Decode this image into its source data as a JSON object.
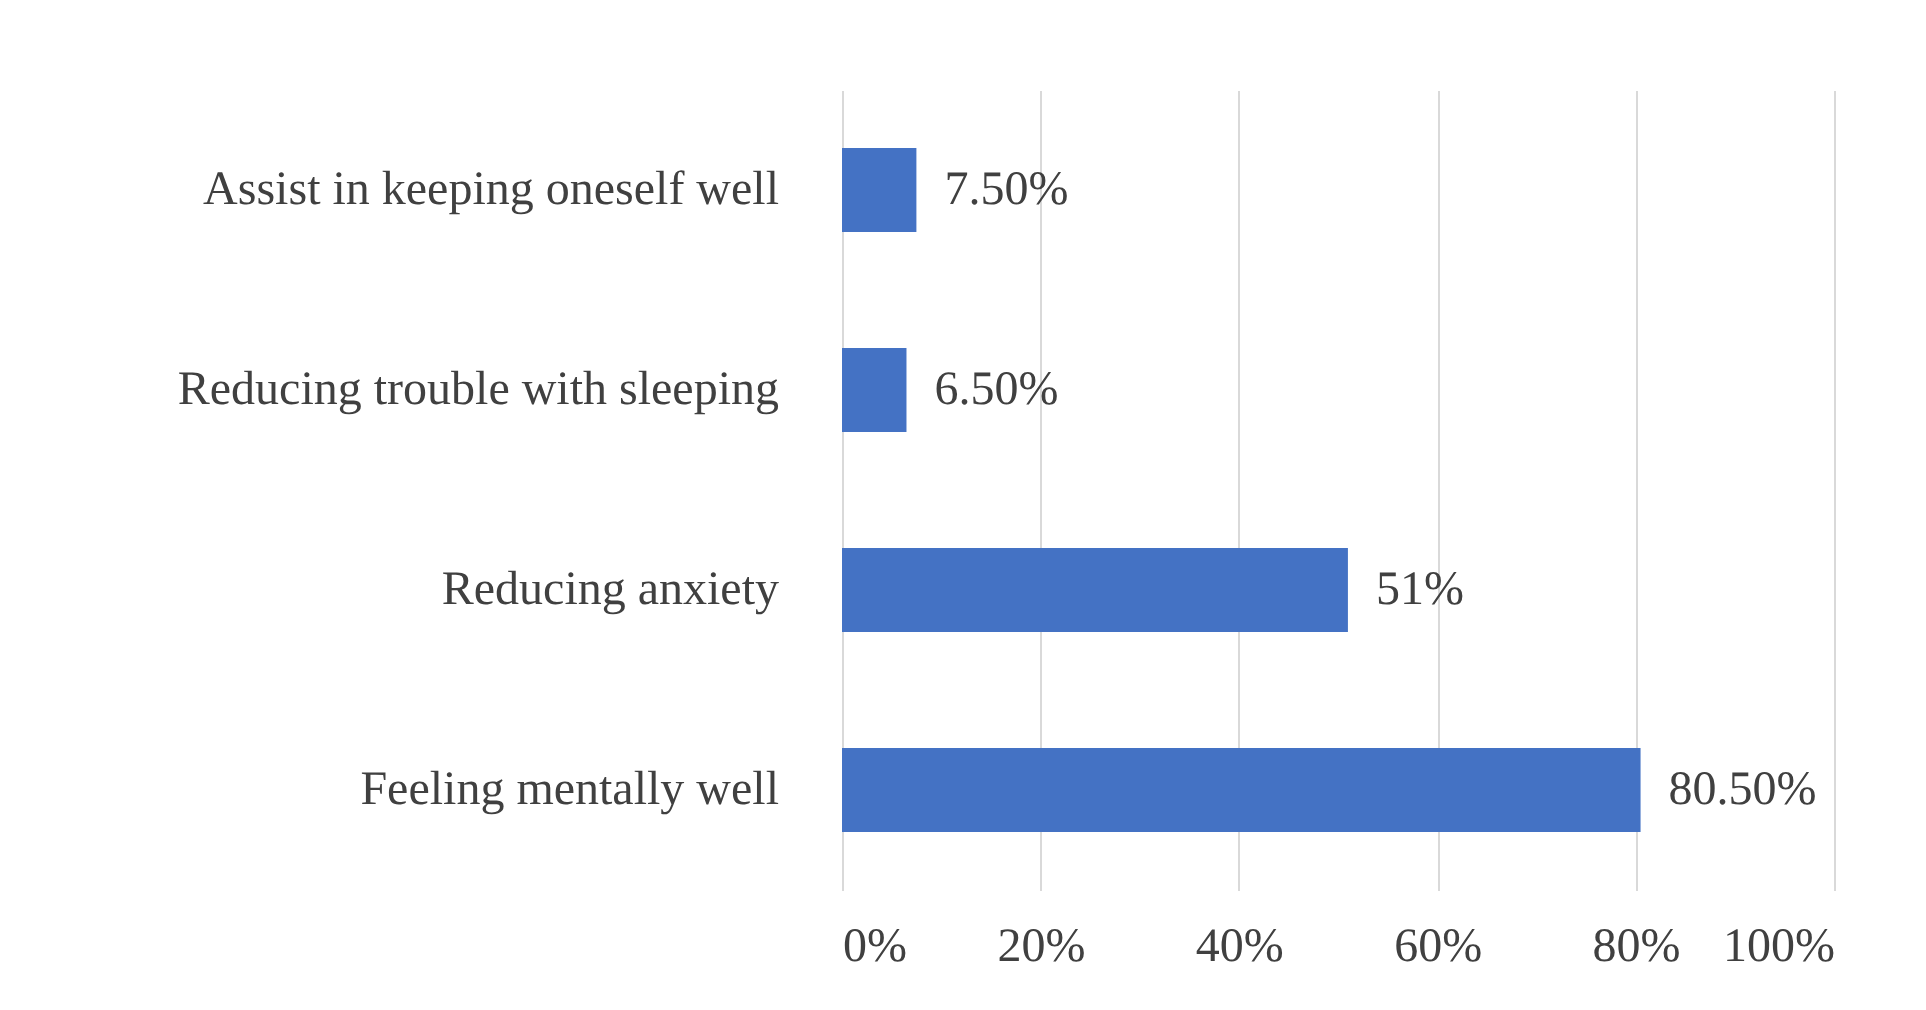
{
  "chart_data": {
    "type": "bar",
    "orientation": "horizontal",
    "categories": [
      "Assist in keeping oneself well",
      "Reducing trouble with sleeping",
      "Reducing anxiety ",
      "Feeling mentally well "
    ],
    "values": [
      7.5,
      6.5,
      51,
      80.5
    ],
    "value_labels": [
      "7.50%",
      "6.50%",
      "51%",
      "80.50%"
    ],
    "color": "#4472c4",
    "xlim": [
      0,
      100
    ],
    "xticks": [
      {
        "value": 0,
        "label": "0%"
      },
      {
        "value": 20,
        "label": "20%"
      },
      {
        "value": 40,
        "label": "40%"
      },
      {
        "value": 60,
        "label": "60%"
      },
      {
        "value": 80,
        "label": "80%"
      },
      {
        "value": 100,
        "label": "100%"
      }
    ],
    "grid": "x"
  }
}
